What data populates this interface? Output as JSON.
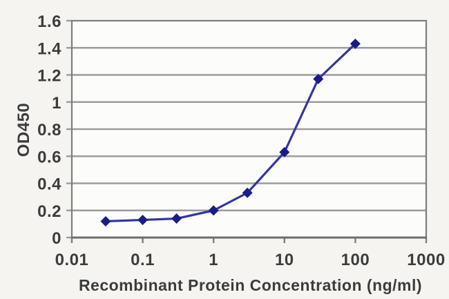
{
  "chart_data": {
    "type": "line",
    "title": "",
    "xlabel": "Recombinant Protein Concentration (ng/ml)",
    "ylabel": "OD450",
    "x_scale": "log",
    "x": [
      0.03,
      0.1,
      0.3,
      1,
      3,
      10,
      30,
      100
    ],
    "y": [
      0.12,
      0.13,
      0.14,
      0.2,
      0.33,
      0.63,
      1.17,
      1.43
    ],
    "xlim": [
      0.01,
      1000
    ],
    "ylim": [
      0,
      1.6
    ],
    "x_tick_values": [
      0.01,
      0.1,
      1,
      10,
      100,
      1000
    ],
    "x_tick_labels": [
      "0.01",
      "0.1",
      "1",
      "10",
      "100",
      "1000"
    ],
    "y_tick_values": [
      0,
      0.2,
      0.4,
      0.6,
      0.8,
      1,
      1.2,
      1.4,
      1.6
    ],
    "y_tick_labels": [
      "0",
      "0.2",
      "0.4",
      "0.6",
      "0.8",
      "1",
      "1.2",
      "1.4",
      "1.6"
    ],
    "grid": "horizontal",
    "legend": "none",
    "marker": "diamond",
    "colors": {
      "line": "#3434a3",
      "marker": "#1c1c88",
      "grid": "#9c9c9c",
      "border": "#7d7d7d",
      "axis_bottom": "#6e6e6e",
      "text": "#3c3c3c",
      "background": "#f5f4f1",
      "plot_background": "#fcfcfb"
    }
  }
}
